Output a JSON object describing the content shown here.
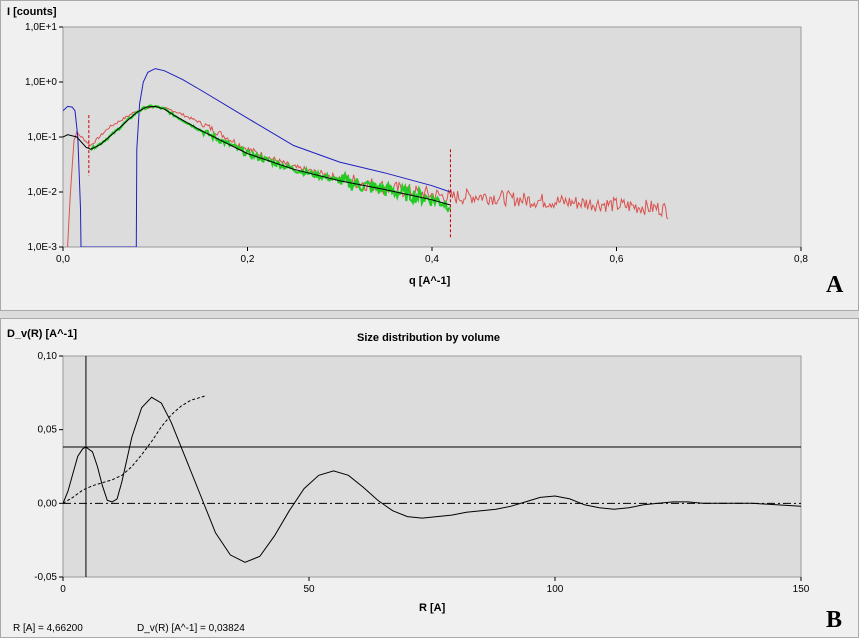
{
  "panel_a": {
    "letter": "A",
    "chart_data": {
      "type": "line",
      "ylabel": "I [counts]",
      "xlabel": "q [A^-1]",
      "yscale": "log",
      "xlim": [
        0,
        0.8
      ],
      "ylim": [
        0.001,
        10
      ],
      "xticks": [
        {
          "v": 0,
          "label": "0,0"
        },
        {
          "v": 0.2,
          "label": "0,2"
        },
        {
          "v": 0.4,
          "label": "0,4"
        },
        {
          "v": 0.6,
          "label": "0,6"
        },
        {
          "v": 0.8,
          "label": "0,8"
        }
      ],
      "yticks": [
        {
          "v": 10,
          "label": "1,0E+1"
        },
        {
          "v": 1,
          "label": "1,0E+0"
        },
        {
          "v": 0.1,
          "label": "1,0E-1"
        },
        {
          "v": 0.01,
          "label": "1,0E-2"
        },
        {
          "v": 0.001,
          "label": "1,0E-3"
        }
      ],
      "grid": false,
      "series": [
        {
          "color": "#d9534f",
          "noisy": true,
          "x": [
            0.005,
            0.008,
            0.012,
            0.015,
            0.02,
            0.03,
            0.05,
            0.08,
            0.1,
            0.12,
            0.15,
            0.2,
            0.25,
            0.3,
            0.35,
            0.4,
            0.42,
            0.45,
            0.5,
            0.55,
            0.6,
            0.65,
            0.656
          ],
          "y": [
            0.001,
            0.01,
            0.09,
            0.12,
            0.1,
            0.07,
            0.15,
            0.3,
            0.36,
            0.3,
            0.18,
            0.06,
            0.028,
            0.018,
            0.012,
            0.009,
            0.008,
            0.0085,
            0.0072,
            0.0065,
            0.0058,
            0.005,
            0.0045
          ]
        },
        {
          "color": "#1f1fbf",
          "noisy": false,
          "x": [
            0.0,
            0.005,
            0.01,
            0.013,
            0.016,
            0.019,
            0.0195,
            0.0795,
            0.08,
            0.083,
            0.087,
            0.092,
            0.1,
            0.11,
            0.13,
            0.15,
            0.2,
            0.25,
            0.3,
            0.35,
            0.4,
            0.42
          ],
          "y": [
            0.3,
            0.36,
            0.35,
            0.3,
            0.1,
            0.005,
            0.001,
            0.001,
            0.06,
            0.4,
            1.0,
            1.5,
            1.75,
            1.6,
            1.1,
            0.7,
            0.22,
            0.07,
            0.035,
            0.022,
            0.013,
            0.01
          ]
        },
        {
          "color": "#22cc22",
          "noisy": true,
          "x": [
            0.03,
            0.04,
            0.05,
            0.06,
            0.07,
            0.08,
            0.09,
            0.1,
            0.11,
            0.12,
            0.15,
            0.2,
            0.25,
            0.3,
            0.35,
            0.4,
            0.42
          ],
          "y": [
            0.06,
            0.075,
            0.1,
            0.14,
            0.2,
            0.28,
            0.35,
            0.36,
            0.32,
            0.25,
            0.13,
            0.05,
            0.026,
            0.016,
            0.011,
            0.0075,
            0.006
          ]
        },
        {
          "color": "#000000",
          "noisy": false,
          "x": [
            0.0,
            0.005,
            0.015,
            0.025,
            0.03,
            0.04,
            0.05,
            0.06,
            0.07,
            0.08,
            0.09,
            0.1,
            0.11,
            0.12,
            0.15,
            0.2,
            0.25,
            0.3,
            0.35,
            0.4,
            0.42
          ],
          "y": [
            0.1,
            0.11,
            0.1,
            0.065,
            0.06,
            0.072,
            0.1,
            0.14,
            0.2,
            0.28,
            0.35,
            0.36,
            0.32,
            0.25,
            0.13,
            0.05,
            0.026,
            0.016,
            0.011,
            0.0072,
            0.0058
          ]
        }
      ],
      "markers": [
        {
          "x": 0.028,
          "y_from": 0.02,
          "y_to": 0.25,
          "color": "#cc0000"
        },
        {
          "x": 0.42,
          "y_from": 0.0015,
          "y_to": 0.06,
          "color": "#cc0000"
        }
      ]
    }
  },
  "panel_b": {
    "letter": "B",
    "chart_data": {
      "type": "line",
      "title": "Size distribution by volume",
      "ylabel": "D_v(R) [A^-1]",
      "xlabel": "R [A]",
      "xlim": [
        0,
        150
      ],
      "ylim": [
        -0.05,
        0.1
      ],
      "xticks": [
        {
          "v": 0,
          "label": "0"
        },
        {
          "v": 50,
          "label": "50"
        },
        {
          "v": 100,
          "label": "100"
        },
        {
          "v": 150,
          "label": "150"
        }
      ],
      "yticks": [
        {
          "v": 0.1,
          "label": "0,10"
        },
        {
          "v": 0.05,
          "label": "0,05"
        },
        {
          "v": 0.0,
          "label": "0,00"
        },
        {
          "v": -0.05,
          "label": "-0,05"
        }
      ],
      "grid": false,
      "series": [
        {
          "color": "#000000",
          "style": "solid",
          "x": [
            0,
            1,
            2,
            3,
            4,
            4.66,
            6,
            7,
            8,
            9,
            10,
            11,
            12,
            14,
            16,
            18,
            20,
            22,
            25,
            28,
            31,
            34,
            37,
            40,
            43,
            46,
            49,
            52,
            55,
            58,
            61,
            64,
            67,
            70,
            73,
            76,
            79,
            82,
            85,
            88,
            91,
            94,
            97,
            100,
            103,
            106,
            109,
            112,
            115,
            118,
            121,
            124,
            127,
            130,
            135,
            140,
            145,
            150
          ],
          "y": [
            0,
            0.008,
            0.02,
            0.032,
            0.037,
            0.0382,
            0.035,
            0.025,
            0.012,
            0.002,
            0.001,
            0.003,
            0.015,
            0.045,
            0.065,
            0.072,
            0.068,
            0.055,
            0.03,
            0.005,
            -0.02,
            -0.035,
            -0.04,
            -0.036,
            -0.022,
            -0.005,
            0.01,
            0.019,
            0.022,
            0.019,
            0.011,
            0.002,
            -0.005,
            -0.009,
            -0.01,
            -0.009,
            -0.008,
            -0.006,
            -0.005,
            -0.004,
            -0.002,
            0.001,
            0.004,
            0.005,
            0.003,
            -0.001,
            -0.003,
            -0.004,
            -0.003,
            -0.001,
            0.0,
            0.001,
            0.001,
            0.0,
            0.0,
            0.0,
            -0.001,
            -0.002
          ]
        },
        {
          "color": "#000000",
          "style": "dashed",
          "x": [
            0,
            2,
            4,
            6,
            8,
            10,
            12,
            14,
            16,
            18,
            20,
            22,
            24,
            26,
            28,
            29
          ],
          "y": [
            0,
            0.004,
            0.009,
            0.012,
            0.014,
            0.016,
            0.019,
            0.025,
            0.033,
            0.042,
            0.052,
            0.06,
            0.066,
            0.07,
            0.072,
            0.073
          ]
        }
      ],
      "baseline": {
        "y": 0.0,
        "style": "dashdot"
      },
      "cursor": {
        "x": 4.662,
        "y": 0.03824
      }
    },
    "readout": {
      "r": "R [A] = 4,66200",
      "dv": "D_v(R) [A^-1] = 0,03824"
    }
  }
}
